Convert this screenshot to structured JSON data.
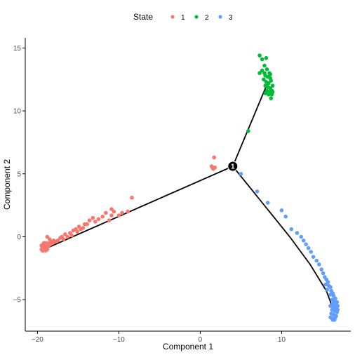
{
  "chart_data": {
    "type": "scatter",
    "xlabel": "Component 1",
    "ylabel": "Component 2",
    "xlim": [
      -21.5,
      18.5
    ],
    "ylim": [
      -7.5,
      15.8
    ],
    "xticks": [
      -20,
      -10,
      0,
      10
    ],
    "xtick_labels": [
      "−20",
      "−10",
      "0",
      "10"
    ],
    "yticks": [
      -5,
      0,
      5,
      10,
      15
    ],
    "ytick_labels": [
      "−5",
      "0",
      "5",
      "10",
      "15"
    ],
    "grid": false,
    "legend": {
      "title": "State",
      "placement": "top-center",
      "entries": [
        {
          "label": "1",
          "color": "#F8766D"
        },
        {
          "label": "2",
          "color": "#00BA38"
        },
        {
          "label": "3",
          "color": "#619CFF"
        }
      ]
    },
    "branch_node": {
      "label": "1",
      "x": 4.0,
      "y": 5.6
    },
    "trajectory": [
      [
        [
          4.0,
          5.6
        ],
        [
          -19.2,
          -1.0
        ]
      ],
      [
        [
          4.0,
          5.6
        ],
        [
          8.2,
          12.1
        ]
      ],
      [
        [
          4.0,
          5.6
        ],
        [
          6.0,
          4.0
        ],
        [
          8.5,
          2.0
        ],
        [
          11.0,
          0.0
        ],
        [
          13.5,
          -2.2
        ],
        [
          15.5,
          -4.3
        ],
        [
          16.3,
          -5.7
        ]
      ]
    ],
    "series": [
      {
        "name": "1",
        "color": "#F8766D",
        "points": [
          [
            -19.5,
            -1.0
          ],
          [
            -19.4,
            -0.8
          ],
          [
            -19.3,
            -1.1
          ],
          [
            -19.2,
            -0.9
          ],
          [
            -19.1,
            -1.0
          ],
          [
            -19.0,
            -0.7
          ],
          [
            -19.3,
            -0.6
          ],
          [
            -18.9,
            -0.9
          ],
          [
            -18.8,
            -0.8
          ],
          [
            -18.7,
            -0.6
          ],
          [
            -19.5,
            -0.7
          ],
          [
            -19.4,
            -1.1
          ],
          [
            -18.6,
            -0.7
          ],
          [
            -18.5,
            -0.5
          ],
          [
            -19.0,
            -1.1
          ],
          [
            -18.9,
            -0.5
          ],
          [
            -18.8,
            -1.0
          ],
          [
            -19.2,
            -0.5
          ],
          [
            -18.4,
            -0.6
          ],
          [
            -18.3,
            -0.4
          ],
          [
            -18.1,
            -0.5
          ],
          [
            -18.0,
            -0.3
          ],
          [
            -17.8,
            -0.4
          ],
          [
            -18.5,
            -0.2
          ],
          [
            -18.8,
            0.0
          ],
          [
            -17.5,
            -0.3
          ],
          [
            -17.2,
            -0.1
          ],
          [
            -17.0,
            0.0
          ],
          [
            -16.8,
            -0.2
          ],
          [
            -16.6,
            0.2
          ],
          [
            -16.3,
            0.0
          ],
          [
            -16.0,
            0.3
          ],
          [
            -15.8,
            0.1
          ],
          [
            -15.6,
            0.5
          ],
          [
            -15.3,
            0.6
          ],
          [
            -15.1,
            0.4
          ],
          [
            -14.9,
            0.8
          ],
          [
            -14.7,
            0.6
          ],
          [
            -14.4,
            0.7
          ],
          [
            -14.2,
            1.0
          ],
          [
            -13.9,
            1.0
          ],
          [
            -13.6,
            1.3
          ],
          [
            -13.2,
            1.5
          ],
          [
            -12.9,
            1.2
          ],
          [
            -12.5,
            1.4
          ],
          [
            -12.0,
            1.6
          ],
          [
            -11.6,
            1.9
          ],
          [
            -11.2,
            1.3
          ],
          [
            -10.9,
            1.7
          ],
          [
            -10.6,
            2.0
          ],
          [
            -10.9,
            2.2
          ],
          [
            -10.0,
            1.7
          ],
          [
            -9.6,
            1.9
          ],
          [
            -8.9,
            2.0
          ],
          [
            -8.4,
            3.1
          ],
          [
            1.4,
            5.6
          ],
          [
            1.6,
            5.4
          ],
          [
            1.8,
            5.5
          ],
          [
            1.5,
            5.5
          ],
          [
            1.7,
            6.3
          ]
        ]
      },
      {
        "name": "2",
        "color": "#00BA38",
        "points": [
          [
            5.9,
            8.4
          ],
          [
            7.3,
            14.4
          ],
          [
            7.6,
            14.1
          ],
          [
            7.9,
            13.6
          ],
          [
            8.1,
            14.2
          ],
          [
            7.6,
            13.2
          ],
          [
            7.3,
            13.0
          ],
          [
            7.9,
            13.0
          ],
          [
            8.2,
            13.3
          ],
          [
            8.5,
            13.0
          ],
          [
            8.0,
            12.8
          ],
          [
            8.3,
            12.7
          ],
          [
            8.6,
            12.6
          ],
          [
            7.8,
            12.5
          ],
          [
            8.1,
            12.3
          ],
          [
            8.4,
            12.2
          ],
          [
            8.7,
            12.4
          ],
          [
            8.0,
            12.0
          ],
          [
            8.3,
            11.9
          ],
          [
            8.6,
            11.8
          ],
          [
            8.8,
            11.6
          ],
          [
            8.2,
            11.6
          ],
          [
            8.5,
            11.5
          ],
          [
            8.8,
            11.3
          ],
          [
            8.6,
            12.9
          ],
          [
            8.9,
            11.5
          ],
          [
            8.4,
            11.3
          ],
          [
            8.0,
            11.4
          ],
          [
            8.7,
            11.0
          ],
          [
            8.9,
            12.0
          ]
        ]
      },
      {
        "name": "3",
        "color": "#619CFF",
        "points": [
          [
            5.0,
            5.0
          ],
          [
            7.0,
            3.6
          ],
          [
            8.3,
            2.7
          ],
          [
            10.0,
            2.1
          ],
          [
            10.5,
            1.6
          ],
          [
            11.2,
            0.6
          ],
          [
            11.9,
            0.3
          ],
          [
            12.4,
            0.0
          ],
          [
            12.7,
            -0.3
          ],
          [
            13.0,
            -0.6
          ],
          [
            13.3,
            -0.9
          ],
          [
            13.6,
            -1.2
          ],
          [
            13.9,
            -1.6
          ],
          [
            14.3,
            -1.9
          ],
          [
            14.6,
            -2.2
          ],
          [
            14.9,
            -2.6
          ],
          [
            15.1,
            -2.9
          ],
          [
            15.3,
            -3.2
          ],
          [
            15.5,
            -3.4
          ],
          [
            15.7,
            -3.6
          ],
          [
            15.4,
            -3.8
          ],
          [
            15.8,
            -3.9
          ],
          [
            16.0,
            -4.0
          ],
          [
            15.6,
            -4.2
          ],
          [
            16.1,
            -4.3
          ],
          [
            16.3,
            -4.5
          ],
          [
            16.0,
            -4.6
          ],
          [
            16.4,
            -4.7
          ],
          [
            16.6,
            -4.9
          ],
          [
            16.2,
            -5.0
          ],
          [
            16.5,
            -5.1
          ],
          [
            16.8,
            -5.2
          ],
          [
            16.3,
            -5.3
          ],
          [
            16.6,
            -5.4
          ],
          [
            16.9,
            -5.5
          ],
          [
            16.4,
            -5.6
          ],
          [
            16.7,
            -5.7
          ],
          [
            16.2,
            -5.8
          ],
          [
            16.5,
            -5.9
          ],
          [
            16.8,
            -6.0
          ],
          [
            16.1,
            -6.1
          ],
          [
            16.4,
            -6.2
          ],
          [
            16.7,
            -6.3
          ],
          [
            16.2,
            -6.5
          ],
          [
            16.5,
            -6.6
          ],
          [
            16.0,
            -6.4
          ],
          [
            16.9,
            -5.8
          ],
          [
            16.0,
            -5.5
          ],
          [
            16.6,
            -6.4
          ],
          [
            16.3,
            -6.6
          ]
        ]
      }
    ]
  }
}
